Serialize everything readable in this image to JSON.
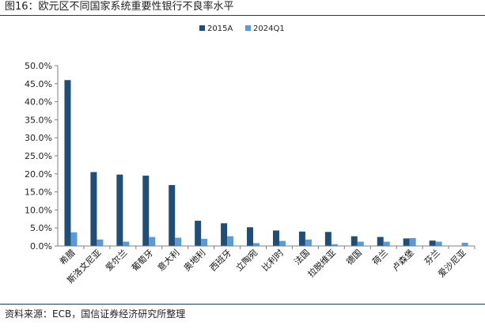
{
  "title": "图16：欧元区不同国家系统重要性银行不良率水平",
  "source": "资料来源：ECB，国信证券经济研究所整理",
  "colors": {
    "series1": "#1f4e79",
    "series2": "#5b9bd5",
    "axis": "#7f7f7f",
    "rule": "#1f3864"
  },
  "chart_data": {
    "type": "bar",
    "categories": [
      "希腊",
      "斯洛文尼亚",
      "爱尔兰",
      "葡萄牙",
      "意大利",
      "奥地利",
      "西班牙",
      "立陶宛",
      "比利时",
      "法国",
      "拉脱维亚",
      "德国",
      "荷兰",
      "卢森堡",
      "芬兰",
      "爱沙尼亚"
    ],
    "series": [
      {
        "name": "2015A",
        "values": [
          46.0,
          20.5,
          19.8,
          19.5,
          16.9,
          7.0,
          6.3,
          5.2,
          4.3,
          4.0,
          3.9,
          2.7,
          2.5,
          2.1,
          1.5,
          0.0
        ]
      },
      {
        "name": "2024Q1",
        "values": [
          3.8,
          1.8,
          1.2,
          2.5,
          2.3,
          2.0,
          2.7,
          0.8,
          1.4,
          1.8,
          0.5,
          1.2,
          1.2,
          2.2,
          1.2,
          0.9
        ]
      }
    ],
    "ylim": [
      0,
      50
    ],
    "yticks": [
      "0.0%",
      "5.0%",
      "10.0%",
      "15.0%",
      "20.0%",
      "25.0%",
      "30.0%",
      "35.0%",
      "40.0%",
      "45.0%",
      "50.0%"
    ],
    "xlabel": "",
    "ylabel": "",
    "legend_position": "top-center",
    "grid": false
  }
}
